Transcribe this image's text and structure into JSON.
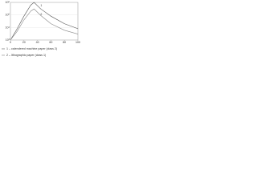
{
  "chart_data": {
    "type": "line",
    "x": [
      0,
      10,
      20,
      30,
      35,
      45,
      60,
      80,
      100
    ],
    "series": [
      {
        "name": "1 – calendered machine paper (class 2)",
        "color": "#555555",
        "label": "1",
        "values": [
          1000,
          8000,
          80000,
          600000,
          1000000,
          300000,
          80000,
          20000,
          8000
        ]
      },
      {
        "name": "2 – lithographic paper (class 1)",
        "color": "#888888",
        "label": "2",
        "values": [
          1000,
          5000,
          40000,
          200000,
          300000,
          90000,
          20000,
          6000,
          3000
        ]
      }
    ],
    "xlim": [
      0,
      100
    ],
    "xticks": [
      0,
      20,
      40,
      60,
      80,
      100
    ],
    "ylim": [
      1000,
      1000000
    ],
    "yticks": [
      {
        "value": 1000,
        "label": "10³"
      },
      {
        "value": 10000,
        "label": "10⁴"
      },
      {
        "value": 100000,
        "label": "10⁵"
      },
      {
        "value": 1000000,
        "label": "10⁶"
      }
    ],
    "log_y": true,
    "grid": true
  }
}
